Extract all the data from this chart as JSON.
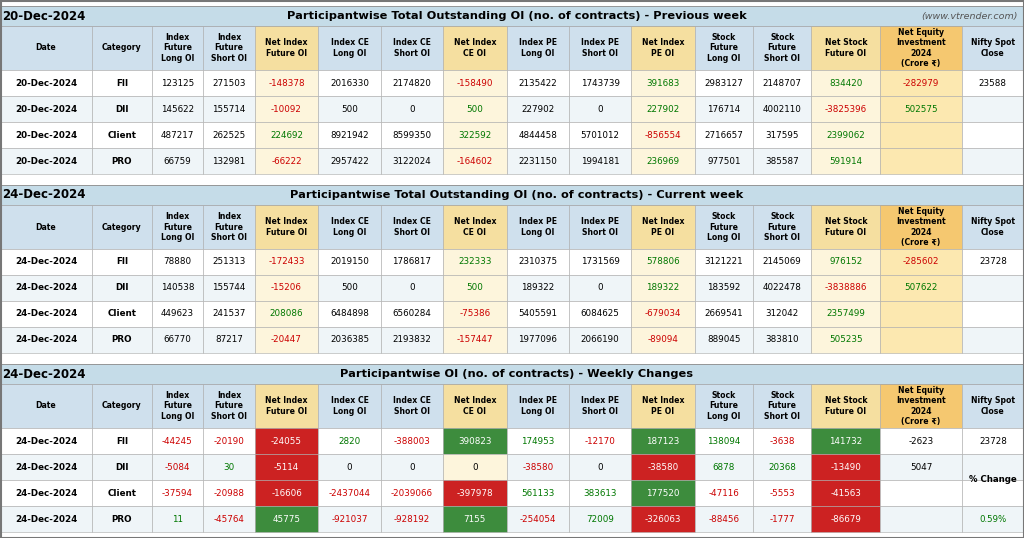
{
  "title1_date": "20-Dec-2024",
  "title1_main": "Participantwise Total Outstanding OI (no. of contracts) - Previous week",
  "title1_web": "(www.vtrender.com)",
  "title2_date": "24-Dec-2024",
  "title2_main": "Participantwise Total Outstanding OI (no. of contracts) - Current week",
  "title3_date": "24-Dec-2024",
  "title3_main": "Participantwise OI (no. of contracts) - Weekly Changes",
  "col_headers": [
    "Date",
    "Category",
    "Index\nFuture\nLong OI",
    "Index\nFuture\nShort OI",
    "Net Index\nFuture OI",
    "Index CE\nLong OI",
    "Index CE\nShort OI",
    "Net Index\nCE OI",
    "Index PE\nLong OI",
    "Index PE\nShort OI",
    "Net Index\nPE OI",
    "Stock\nFuture\nLong OI",
    "Stock\nFuture\nShort OI",
    "Net Stock\nFuture OI",
    "Net Equity\nInvestment\n2024\n(Crore ₹)",
    "Nifty Spot\nClose"
  ],
  "section1_rows": [
    [
      "20-Dec-2024",
      "FII",
      "123125",
      "271503",
      "-148378",
      "2016330",
      "2174820",
      "-158490",
      "2135422",
      "1743739",
      "391683",
      "2983127",
      "2148707",
      "834420",
      "-282979",
      "23588"
    ],
    [
      "20-Dec-2024",
      "DII",
      "145622",
      "155714",
      "-10092",
      "500",
      "0",
      "500",
      "227902",
      "0",
      "227902",
      "176714",
      "4002110",
      "-3825396",
      "502575",
      ""
    ],
    [
      "20-Dec-2024",
      "Client",
      "487217",
      "262525",
      "224692",
      "8921942",
      "8599350",
      "322592",
      "4844458",
      "5701012",
      "-856554",
      "2716657",
      "317595",
      "2399062",
      "",
      ""
    ],
    [
      "20-Dec-2024",
      "PRO",
      "66759",
      "132981",
      "-66222",
      "2957422",
      "3122024",
      "-164602",
      "2231150",
      "1994181",
      "236969",
      "977501",
      "385587",
      "591914",
      "",
      ""
    ]
  ],
  "section2_rows": [
    [
      "24-Dec-2024",
      "FII",
      "78880",
      "251313",
      "-172433",
      "2019150",
      "1786817",
      "232333",
      "2310375",
      "1731569",
      "578806",
      "3121221",
      "2145069",
      "976152",
      "-285602",
      "23728"
    ],
    [
      "24-Dec-2024",
      "DII",
      "140538",
      "155744",
      "-15206",
      "500",
      "0",
      "500",
      "189322",
      "0",
      "189322",
      "183592",
      "4022478",
      "-3838886",
      "507622",
      ""
    ],
    [
      "24-Dec-2024",
      "Client",
      "449623",
      "241537",
      "208086",
      "6484898",
      "6560284",
      "-75386",
      "5405591",
      "6084625",
      "-679034",
      "2669541",
      "312042",
      "2357499",
      "",
      ""
    ],
    [
      "24-Dec-2024",
      "PRO",
      "66770",
      "87217",
      "-20447",
      "2036385",
      "2193832",
      "-157447",
      "1977096",
      "2066190",
      "-89094",
      "889045",
      "383810",
      "505235",
      "",
      ""
    ]
  ],
  "section3_rows": [
    [
      "24-Dec-2024",
      "FII",
      "-44245",
      "-20190",
      "-24055",
      "2820",
      "-388003",
      "390823",
      "174953",
      "-12170",
      "187123",
      "138094",
      "-3638",
      "141732",
      "-2623",
      "23728"
    ],
    [
      "24-Dec-2024",
      "DII",
      "-5084",
      "30",
      "-5114",
      "0",
      "0",
      "0",
      "-38580",
      "0",
      "-38580",
      "6878",
      "20368",
      "-13490",
      "5047",
      ""
    ],
    [
      "24-Dec-2024",
      "Client",
      "-37594",
      "-20988",
      "-16606",
      "-2437044",
      "-2039066",
      "-397978",
      "561133",
      "383613",
      "177520",
      "-47116",
      "-5553",
      "-41563",
      "",
      ""
    ],
    [
      "24-Dec-2024",
      "PRO",
      "11",
      "-45764",
      "45775",
      "-921037",
      "-928192",
      "7155",
      "-254054",
      "72009",
      "-326063",
      "-88456",
      "-1777",
      "-86679",
      "",
      ""
    ]
  ],
  "pct_change": "0.59%",
  "title_bg": "#c5dce8",
  "header_bg": "#cfe0ed",
  "net_header_bg": "#f5dfa0",
  "net_equity_header_bg": "#f5c870",
  "net_col_bg": "#fdf5dc",
  "net_equity_col_bg": "#fce8b0",
  "row_bg_even": "#ffffff",
  "row_bg_odd": "#eff5f8",
  "color_pos": "#007700",
  "color_neg": "#cc0000",
  "color_black": "#000000",
  "color_white": "#ffffff",
  "s3_green_bg": "#3d8c3d",
  "s3_red_bg": "#cc2222"
}
